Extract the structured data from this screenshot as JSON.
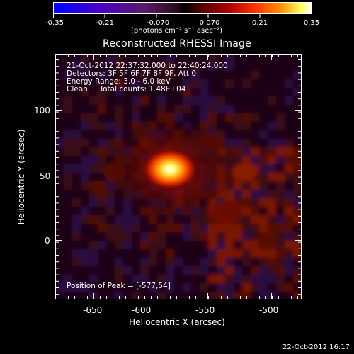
{
  "colorbar": {
    "tick_labels": [
      "-0.35",
      "-0.21",
      "-0.070",
      "0.070",
      "0.21",
      "0.35"
    ],
    "units_line": "(photons cm⁻² s⁻¹ asec⁻²)",
    "range": [
      -0.35,
      0.35
    ]
  },
  "title": "Reconstructed RHESSI Image",
  "info": {
    "line1": "21-Oct-2012 22:37:32.000 to 22:40:24.000",
    "line2": "Detectors: 3F 5F 6F 7F 8F 9F, Att 0",
    "line3": "Energy Range: 3.0 - 6.0 keV",
    "line4": "Clean     Total counts: 1.48E+04"
  },
  "peak_label": "Position of Peak = [-577,54]",
  "axes": {
    "xlabel": "Heliocentric X (arcsec)",
    "ylabel": "Heliocentric Y (arcsec)",
    "xticks": [
      "-650",
      "-600",
      "-550",
      "-500"
    ],
    "yticks": [
      "100",
      "50",
      "0"
    ],
    "xlim": [
      -672,
      -480
    ],
    "ylim": [
      -45,
      130
    ]
  },
  "footer_date": "22-Oct-2012 16:17",
  "image_peak": {
    "x": -577,
    "y": 54
  }
}
